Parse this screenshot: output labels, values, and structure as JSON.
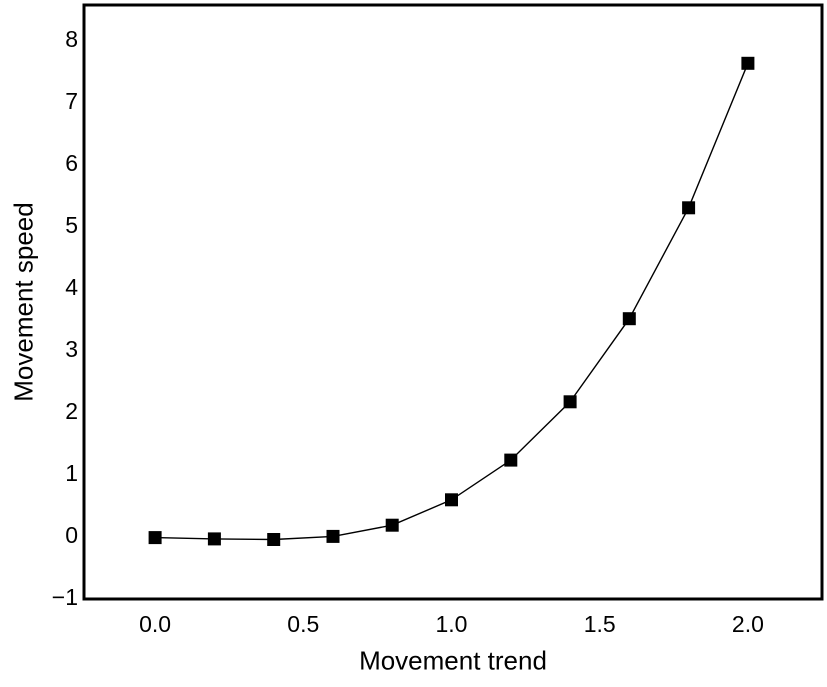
{
  "figure": {
    "background": "#ffffff",
    "frame_color": "#000000",
    "text_color": "#000000"
  },
  "chart_data": {
    "type": "line",
    "title": "",
    "xlabel": "Movement trend",
    "ylabel": "Movement speed",
    "x": [
      0.0,
      0.2,
      0.4,
      0.6,
      0.8,
      1.0,
      1.2,
      1.4,
      1.6,
      1.8,
      2.0
    ],
    "y": [
      -0.04,
      -0.06,
      -0.07,
      -0.02,
      0.16,
      0.57,
      1.21,
      2.15,
      3.49,
      5.28,
      7.61
    ],
    "series": [
      {
        "name": "Movement speed",
        "marker": "filled-square",
        "color": "#000000",
        "line_color": "#000000"
      }
    ],
    "xticks": {
      "values": [
        0.0,
        0.5,
        1.0,
        1.5,
        2.0
      ],
      "labels": [
        "0.0",
        "0.5",
        "1.0",
        "1.5",
        "2.0"
      ]
    },
    "yticks": {
      "values": [
        -1,
        0,
        1,
        2,
        3,
        4,
        5,
        6,
        7,
        8
      ],
      "labels": [
        "−1",
        "0",
        "1",
        "2",
        "3",
        "4",
        "5",
        "6",
        "7",
        "8"
      ]
    },
    "xlim": [
      -0.24,
      2.25
    ],
    "ylim": [
      -1.03,
      8.55
    ],
    "grid": false,
    "legend": "none"
  }
}
